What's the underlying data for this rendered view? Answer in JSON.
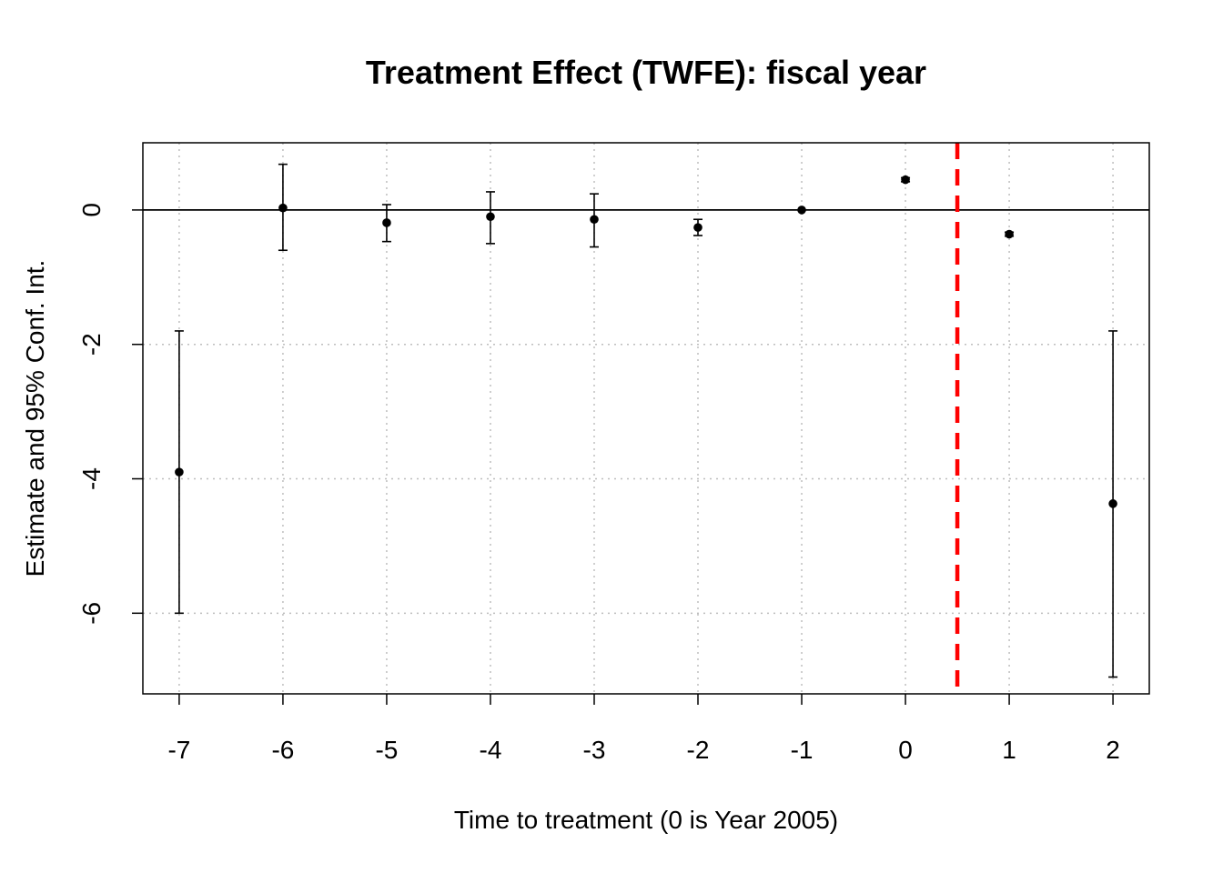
{
  "chart_data": {
    "type": "scatter",
    "title": "Treatment Effect (TWFE): fiscal year",
    "xlabel": "Time to treatment (0 is Year 2005)",
    "ylabel": "Estimate and 95% Conf. Int.",
    "xlim": [
      -7.35,
      2.35
    ],
    "ylim": [
      -7.2,
      1.0
    ],
    "x_ticks": [
      -7,
      -6,
      -5,
      -4,
      -3,
      -2,
      -1,
      0,
      1,
      2
    ],
    "x_tick_labels": [
      "-7",
      "-6",
      "-5",
      "-4",
      "-3",
      "-2",
      "-1",
      "0",
      "1",
      "2"
    ],
    "y_ticks": [
      0,
      -2,
      -4,
      -6
    ],
    "y_tick_labels": [
      "0",
      "-2",
      "-4",
      "-6"
    ],
    "grid": true,
    "reference_line_y": 0,
    "treatment_line_x": 0.5,
    "points": [
      {
        "x": -7,
        "estimate": -3.9,
        "ci_low": -6.0,
        "ci_high": -1.8
      },
      {
        "x": -6,
        "estimate": 0.03,
        "ci_low": -0.6,
        "ci_high": 0.68
      },
      {
        "x": -5,
        "estimate": -0.19,
        "ci_low": -0.47,
        "ci_high": 0.08
      },
      {
        "x": -4,
        "estimate": -0.1,
        "ci_low": -0.5,
        "ci_high": 0.27
      },
      {
        "x": -3,
        "estimate": -0.14,
        "ci_low": -0.55,
        "ci_high": 0.24
      },
      {
        "x": -2,
        "estimate": -0.26,
        "ci_low": -0.38,
        "ci_high": -0.14
      },
      {
        "x": -1,
        "estimate": 0.0,
        "ci_low": 0.0,
        "ci_high": 0.0
      },
      {
        "x": 0,
        "estimate": 0.45,
        "ci_low": 0.42,
        "ci_high": 0.48
      },
      {
        "x": 1,
        "estimate": -0.36,
        "ci_low": -0.39,
        "ci_high": -0.33
      },
      {
        "x": 2,
        "estimate": -4.37,
        "ci_low": -6.95,
        "ci_high": -1.8
      }
    ],
    "colors": {
      "points": "#000000",
      "treatment_line": "#ff0000",
      "grid": "#bebebe"
    }
  }
}
